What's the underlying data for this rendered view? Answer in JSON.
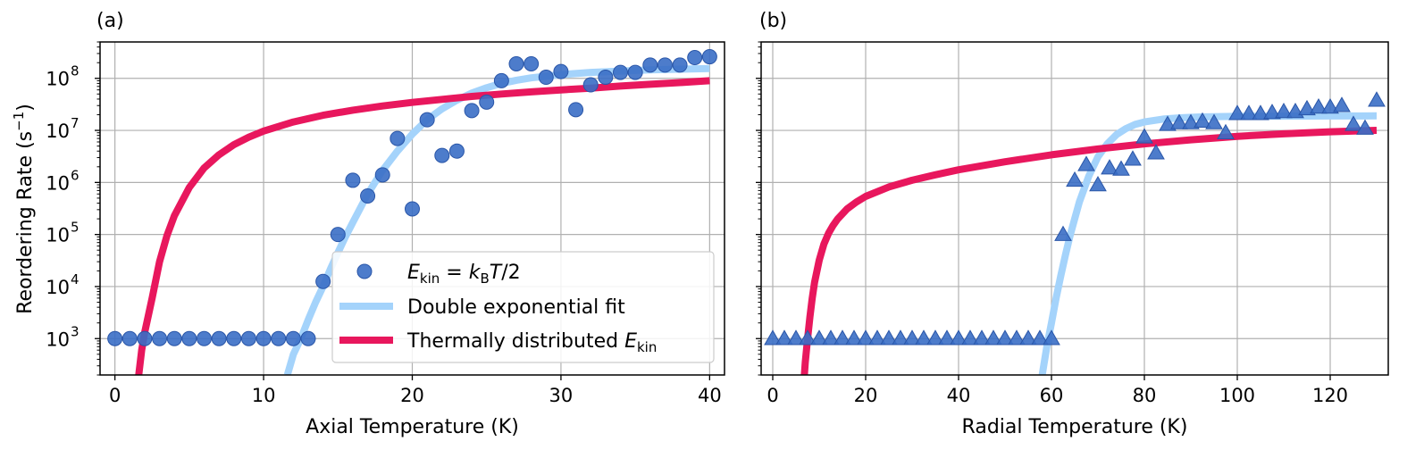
{
  "colors": {
    "marker_fill": "#3A6EC5",
    "marker_edge": "#2A56A8",
    "fit": "#A4D3FB",
    "thermal": "#E8175D"
  },
  "legend": {
    "markers_label": "E_kin = k_B T/2",
    "markers_label_parts": {
      "E": "E",
      "kin": "kin",
      "eq": " = ",
      "k": "k",
      "B": "B",
      "T": "T",
      "tail": "/2"
    },
    "fit_label": "Double exponential fit",
    "thermal_label_main": "Thermally distributed ",
    "thermal_label_E": "E",
    "thermal_label_sub": "kin"
  },
  "chart_data": [
    {
      "type": "scatter",
      "panel": "(a)",
      "xlabel": "Axial Temperature (K)",
      "ylabel": "Reordering Rate (s⁻¹)",
      "ylabel_parts": {
        "main": "Reordering Rate (s",
        "sup": "−1",
        "close": ")"
      },
      "xlim": [
        -1,
        41
      ],
      "ylim": [
        200,
        500000000
      ],
      "yscale": "log",
      "grid": true,
      "legend_position": "lower-right",
      "xticks": [
        0,
        10,
        20,
        30,
        40
      ],
      "yticks": [
        1000,
        10000,
        100000,
        1000000,
        10000000,
        100000000
      ],
      "ytick_exponents": [
        "3",
        "4",
        "5",
        "6",
        "7",
        "8"
      ],
      "marker": "circle",
      "series": [
        {
          "name": "E_kin = k_B T/2",
          "kind": "markers",
          "x": [
            0,
            1,
            2,
            3,
            4,
            5,
            6,
            7,
            8,
            9,
            10,
            11,
            12,
            13,
            14,
            15,
            16,
            17,
            18,
            19,
            20,
            21,
            22,
            23,
            24,
            25,
            26,
            27,
            28,
            29,
            30,
            31,
            32,
            33,
            34,
            35,
            36,
            37,
            38,
            39,
            40
          ],
          "y": [
            1000,
            1000,
            1000,
            1000,
            1000,
            1000,
            1000,
            1000,
            1000,
            1000,
            1000,
            1000,
            1000,
            1000,
            12500,
            100000,
            1100000,
            550000,
            1400000,
            7000000,
            310000,
            16000000,
            3300000,
            4000000,
            24000000,
            35000000,
            90000000,
            190000000,
            190000000,
            105000000,
            135000000,
            25000000,
            75000000,
            105000000,
            130000000,
            130000000,
            180000000,
            180000000,
            180000000,
            250000000,
            260000000
          ]
        },
        {
          "name": "Double exponential fit",
          "kind": "line",
          "x": [
            11.6,
            12,
            12.5,
            13,
            13.5,
            14,
            14.5,
            15,
            15.5,
            16,
            17,
            18,
            19,
            20,
            21,
            22,
            23,
            24,
            25,
            26,
            27,
            28,
            30,
            32,
            34,
            36,
            38,
            40
          ],
          "y": [
            200,
            500,
            1000,
            2300,
            5000,
            10000,
            22000,
            45000,
            90000,
            170000,
            600000,
            1700000,
            4000000,
            8500000,
            16000000,
            26000000,
            38000000,
            52000000,
            66000000,
            80000000,
            92000000,
            102000000,
            118000000,
            130000000,
            138000000,
            145000000,
            150000000,
            155000000
          ]
        },
        {
          "name": "Thermally distributed E_kin",
          "kind": "line",
          "x": [
            1.6,
            1.8,
            2,
            2.5,
            3,
            3.5,
            4,
            5,
            6,
            7,
            8,
            9,
            10,
            12,
            14,
            16,
            18,
            20,
            22,
            24,
            26,
            28,
            30,
            32,
            34,
            36,
            38,
            40
          ],
          "y": [
            200,
            600,
            1300,
            6000,
            30000,
            95000,
            230000,
            800000,
            1900000,
            3400000,
            5300000,
            7400000,
            9700000,
            14500000,
            19500000,
            24500000,
            29500000,
            34500000,
            39500000,
            45000000,
            50000000,
            55000000,
            60000000,
            65000000,
            71000000,
            77000000,
            83000000,
            90000000
          ]
        }
      ]
    },
    {
      "type": "scatter",
      "panel": "(b)",
      "xlabel": "Radial Temperature (K)",
      "xlim": [
        -2.5,
        132.5
      ],
      "ylim": [
        200,
        500000000
      ],
      "yscale": "log",
      "grid": true,
      "xticks": [
        0,
        20,
        40,
        60,
        80,
        100,
        120
      ],
      "marker": "triangle",
      "series": [
        {
          "name": "E_kin = k_B T/2",
          "kind": "markers",
          "x": [
            0,
            2.5,
            5,
            7.5,
            10,
            12.5,
            15,
            17.5,
            20,
            22.5,
            25,
            27.5,
            30,
            32.5,
            35,
            37.5,
            40,
            42.5,
            45,
            47.5,
            50,
            52.5,
            55,
            57.5,
            60,
            62.5,
            65,
            67.5,
            70,
            72.5,
            75,
            77.5,
            80,
            82.5,
            85,
            87.5,
            90,
            92.5,
            95,
            97.5,
            100,
            102.5,
            105,
            107.5,
            110,
            112.5,
            115,
            117.5,
            120,
            122.5,
            125,
            127.5,
            130
          ],
          "y": [
            1000,
            1000,
            1000,
            1000,
            1000,
            1000,
            1000,
            1000,
            1000,
            1000,
            1000,
            1000,
            1000,
            1000,
            1000,
            1000,
            1000,
            1000,
            1000,
            1000,
            1000,
            1000,
            1000,
            1000,
            1000,
            100000,
            1100000,
            2200000,
            900000,
            1900000,
            1800000,
            2800000,
            7500000,
            3700000,
            13000000,
            14000000,
            14000000,
            15000000,
            14000000,
            9000000,
            21000000,
            21000000,
            21000000,
            22000000,
            23000000,
            23000000,
            26000000,
            28000000,
            28000000,
            30000000,
            13000000,
            11000000,
            38000000
          ]
        },
        {
          "name": "Double exponential fit",
          "kind": "line",
          "x": [
            58,
            59,
            60,
            61,
            62,
            63,
            64,
            65,
            66,
            68,
            70,
            72,
            74,
            76,
            78,
            80,
            84,
            88,
            92,
            96,
            100,
            110,
            120,
            130
          ],
          "y": [
            200,
            700,
            2000,
            6000,
            16000,
            40000,
            95000,
            200000,
            420000,
            1300000,
            3100000,
            5500000,
            8300000,
            10800000,
            13000000,
            14500000,
            16500000,
            17500000,
            18100000,
            18400000,
            18600000,
            18800000,
            18900000,
            19000000
          ]
        },
        {
          "name": "Thermally distributed E_kin",
          "kind": "line",
          "x": [
            6.8,
            7,
            7.5,
            8,
            8.5,
            9,
            10,
            11,
            12,
            13,
            14,
            16,
            18,
            20,
            25,
            30,
            35,
            40,
            50,
            60,
            70,
            80,
            90,
            100,
            110,
            120,
            130
          ],
          "y": [
            200,
            350,
            1000,
            2600,
            6000,
            12000,
            32000,
            65000,
            105000,
            150000,
            200000,
            310000,
            420000,
            540000,
            820000,
            1100000,
            1400000,
            1750000,
            2500000,
            3400000,
            4400000,
            5500000,
            6600000,
            7700000,
            8600000,
            9400000,
            10000000
          ]
        }
      ]
    }
  ]
}
